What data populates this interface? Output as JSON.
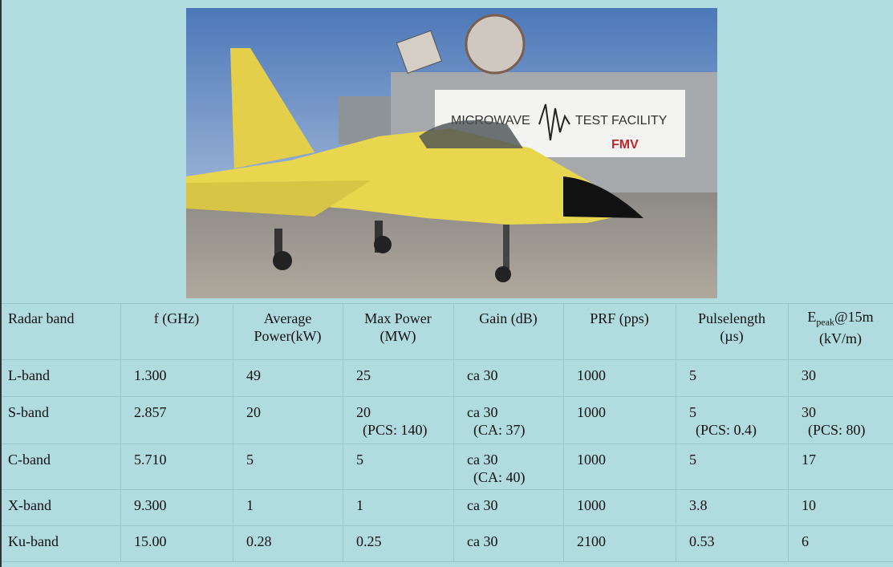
{
  "photo": {
    "sign_left": "MICROWAVE",
    "sign_right": "TEST FACILITY",
    "sign_logo": "FMV"
  },
  "table": {
    "header": [
      [
        "Radar band"
      ],
      [
        "f (GHz)"
      ],
      [
        "Average",
        "Power(kW)"
      ],
      [
        "Max Power",
        "(MW)"
      ],
      [
        "Gain (dB)"
      ],
      [
        "PRF (pps)"
      ],
      [
        "Pulselength",
        "(µs)"
      ],
      [
        {
          "main": "E",
          "sub": "peak",
          "rest": "@15m"
        },
        "(kV/m)"
      ]
    ],
    "rows": [
      [
        [
          "L-band"
        ],
        [
          "1.300"
        ],
        [
          "49"
        ],
        [
          "25"
        ],
        [
          "ca 30"
        ],
        [
          "1000"
        ],
        [
          "5"
        ],
        [
          "30"
        ]
      ],
      [
        [
          "S-band"
        ],
        [
          "2.857"
        ],
        [
          "20"
        ],
        [
          "20",
          "(PCS: 140)"
        ],
        [
          "ca 30",
          "(CA: 37)"
        ],
        [
          "1000"
        ],
        [
          "5",
          "(PCS: 0.4)"
        ],
        [
          "30",
          "(PCS: 80)"
        ]
      ],
      [
        [
          "C-band"
        ],
        [
          "5.710"
        ],
        [
          "5"
        ],
        [
          "5"
        ],
        [
          "ca 30",
          "(CA: 40)"
        ],
        [
          "1000"
        ],
        [
          "5"
        ],
        [
          "17"
        ]
      ],
      [
        [
          "X-band"
        ],
        [
          "9.300"
        ],
        [
          "1"
        ],
        [
          "1"
        ],
        [
          "ca 30"
        ],
        [
          "1000"
        ],
        [
          "3.8"
        ],
        [
          "10"
        ]
      ],
      [
        [
          "Ku-band"
        ],
        [
          "15.00"
        ],
        [
          "0.28"
        ],
        [
          "0.25"
        ],
        [
          "ca 30"
        ],
        [
          "2100"
        ],
        [
          "0.53"
        ],
        [
          "6"
        ]
      ]
    ]
  }
}
